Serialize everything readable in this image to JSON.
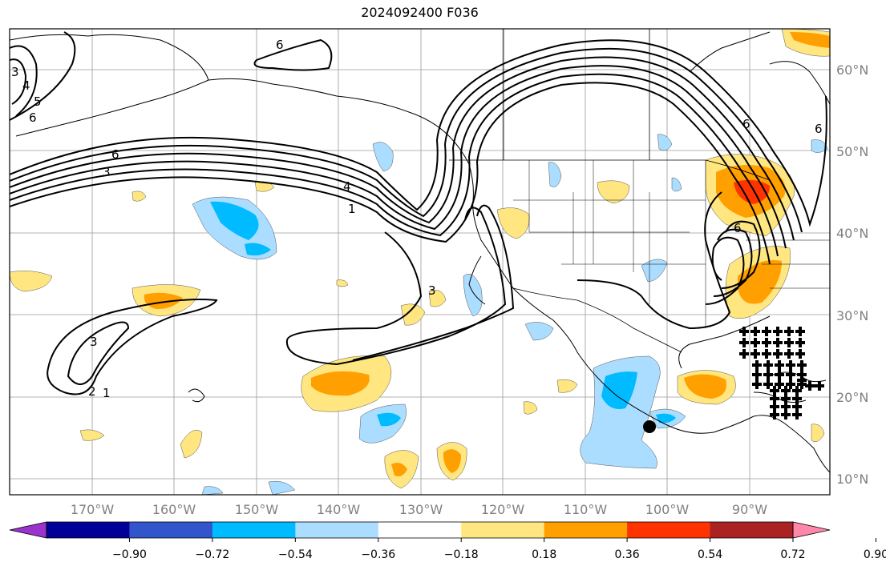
{
  "title": "2024092400 F036",
  "map": {
    "lat_labels": [
      "60°N",
      "50°N",
      "40°N",
      "30°N",
      "20°N",
      "10°N"
    ],
    "lon_labels": [
      "170°W",
      "160°W",
      "150°W",
      "140°W",
      "130°W",
      "120°W",
      "110°W",
      "100°W",
      "90°W"
    ],
    "contour_labels": [
      "3",
      "4",
      "5",
      "6",
      "6",
      "6",
      "3",
      "4",
      "1",
      "3",
      "3",
      "2",
      "1",
      "6",
      "6",
      "6"
    ],
    "marker": "black-dot"
  },
  "colorbar": {
    "ticks": [
      "−0.90",
      "−0.72",
      "−0.54",
      "−0.36",
      "−0.18",
      "0.18",
      "0.36",
      "0.54",
      "0.72",
      "0.90"
    ],
    "colors": [
      "#9933cc",
      "#000099",
      "#3355cc",
      "#00bbff",
      "#aaddff",
      "#ffffff",
      "#ffe680",
      "#ff9f00",
      "#ff3300",
      "#aa2222",
      "#ff88aa"
    ]
  }
}
